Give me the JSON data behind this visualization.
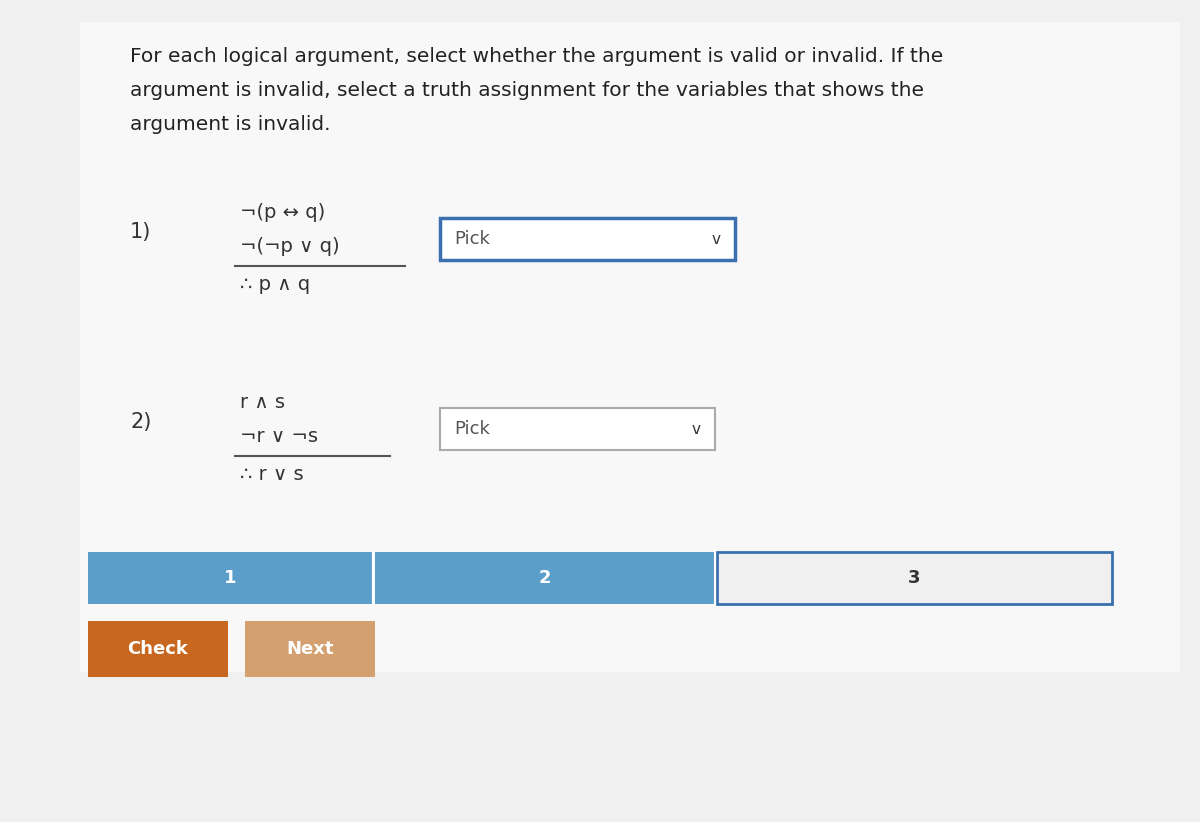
{
  "background_color": "#f0f0f0",
  "content_bg": "#f5f5f5",
  "title_lines": [
    "For each logical argument, select whether the argument is valid or invalid. If the",
    "argument is invalid, select a truth assignment for the variables that shows the",
    "argument is invalid."
  ],
  "title_fontsize": 14.5,
  "title_color": "#222222",
  "problem1": {
    "number": "1)",
    "premise1": "¬(p ↔ q)",
    "premise2": "¬(¬p ∨ q)",
    "conclusion": "∴ p ∧ q",
    "dropdown_text": "Pick",
    "dropdown_border": "#3a6fb0",
    "dropdown_bg": "#ffffff",
    "chevron": "∨"
  },
  "problem2": {
    "number": "2)",
    "premise1": "r ∧ s",
    "premise2": "¬r ∨ ¬s",
    "conclusion": "∴ r ∨ s",
    "dropdown_text": "Pick",
    "dropdown_border": "#aaaaaa",
    "dropdown_bg": "#ffffff",
    "chevron": "∨"
  },
  "progress_bar": {
    "section1_color": "#5b9ec9",
    "section1_label": "1",
    "section2_color": "#5b9ec9",
    "section2_label": "2",
    "section3_color": "#f0f0f0",
    "section3_border": "#3a6fb0",
    "section3_label": "3",
    "label_color_blue": "#ffffff",
    "label_color_3": "#333333",
    "label_fontsize": 13
  },
  "check_button": {
    "color": "#c86820",
    "text": "Check",
    "text_color": "#ffffff",
    "fontsize": 13
  },
  "next_button": {
    "color": "#d4a070",
    "text": "Next",
    "text_color": "#ffffff",
    "fontsize": 13
  },
  "logic_fontsize": 14,
  "number_fontsize": 15
}
